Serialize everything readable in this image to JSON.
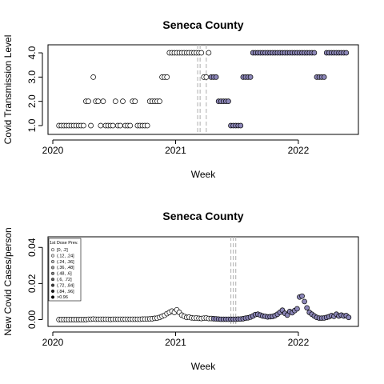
{
  "colors": {
    "fill_low": "#ffffff",
    "fill_high": "#8c87b8",
    "stroke": "#000000",
    "vline": "#bbbbbb"
  },
  "chart_data": [
    {
      "type": "scatter",
      "title": "Seneca County",
      "xlabel": "Week",
      "ylabel": "Covid Transmission Level",
      "x_ticks": [
        "2020",
        "2021",
        "2022"
      ],
      "y_ticks": [
        "1.0",
        "2.0",
        "3.0",
        "4.0"
      ],
      "xlim": [
        2020.0,
        2022.45
      ],
      "ylim": [
        0.9,
        4.1
      ],
      "vlines": [
        2021.18,
        2021.2,
        2021.25
      ],
      "series": [
        {
          "style": "open",
          "points": [
            [
              2020.05,
              1
            ],
            [
              2020.07,
              1
            ],
            [
              2020.09,
              1
            ],
            [
              2020.11,
              1
            ],
            [
              2020.13,
              1
            ],
            [
              2020.15,
              1
            ],
            [
              2020.17,
              1
            ],
            [
              2020.19,
              1
            ],
            [
              2020.21,
              1
            ],
            [
              2020.23,
              1
            ],
            [
              2020.25,
              1
            ],
            [
              2020.27,
              2
            ],
            [
              2020.29,
              2
            ],
            [
              2020.31,
              1
            ],
            [
              2020.33,
              3
            ],
            [
              2020.35,
              2
            ],
            [
              2020.37,
              2
            ],
            [
              2020.39,
              1
            ],
            [
              2020.41,
              2
            ],
            [
              2020.43,
              1
            ],
            [
              2020.45,
              1
            ],
            [
              2020.47,
              1
            ],
            [
              2020.49,
              1
            ],
            [
              2020.51,
              2
            ],
            [
              2020.53,
              1
            ],
            [
              2020.55,
              1
            ],
            [
              2020.57,
              2
            ],
            [
              2020.59,
              1
            ],
            [
              2020.61,
              1
            ],
            [
              2020.63,
              1
            ],
            [
              2020.65,
              2
            ],
            [
              2020.67,
              2
            ],
            [
              2020.69,
              1
            ],
            [
              2020.71,
              1
            ],
            [
              2020.73,
              1
            ],
            [
              2020.75,
              1
            ],
            [
              2020.77,
              1
            ],
            [
              2020.79,
              2
            ],
            [
              2020.81,
              2
            ],
            [
              2020.83,
              2
            ],
            [
              2020.85,
              2
            ],
            [
              2020.87,
              2
            ],
            [
              2020.89,
              3
            ],
            [
              2020.91,
              3
            ],
            [
              2020.93,
              3
            ],
            [
              2020.95,
              4
            ],
            [
              2020.97,
              4
            ],
            [
              2020.99,
              4
            ],
            [
              2021.01,
              4
            ],
            [
              2021.03,
              4
            ],
            [
              2021.05,
              4
            ],
            [
              2021.07,
              4
            ],
            [
              2021.09,
              4
            ],
            [
              2021.11,
              4
            ],
            [
              2021.13,
              4
            ],
            [
              2021.15,
              4
            ],
            [
              2021.17,
              4
            ],
            [
              2021.19,
              4
            ],
            [
              2021.21,
              4
            ],
            [
              2021.23,
              3
            ],
            [
              2021.25,
              3
            ],
            [
              2021.27,
              4
            ]
          ]
        },
        {
          "style": "filled",
          "points": [
            [
              2021.29,
              3
            ],
            [
              2021.31,
              3
            ],
            [
              2021.33,
              3
            ],
            [
              2021.35,
              2
            ],
            [
              2021.37,
              2
            ],
            [
              2021.39,
              2
            ],
            [
              2021.41,
              2
            ],
            [
              2021.43,
              2
            ],
            [
              2021.45,
              1
            ],
            [
              2021.47,
              1
            ],
            [
              2021.49,
              1
            ],
            [
              2021.51,
              1
            ],
            [
              2021.53,
              1
            ],
            [
              2021.55,
              3
            ],
            [
              2021.57,
              3
            ],
            [
              2021.59,
              3
            ],
            [
              2021.61,
              3
            ],
            [
              2021.63,
              4
            ],
            [
              2021.65,
              4
            ],
            [
              2021.67,
              4
            ],
            [
              2021.69,
              4
            ],
            [
              2021.71,
              4
            ],
            [
              2021.73,
              4
            ],
            [
              2021.75,
              4
            ],
            [
              2021.77,
              4
            ],
            [
              2021.79,
              4
            ],
            [
              2021.81,
              4
            ],
            [
              2021.83,
              4
            ],
            [
              2021.85,
              4
            ],
            [
              2021.87,
              4
            ],
            [
              2021.89,
              4
            ],
            [
              2021.91,
              4
            ],
            [
              2021.93,
              4
            ],
            [
              2021.95,
              4
            ],
            [
              2021.97,
              4
            ],
            [
              2021.99,
              4
            ],
            [
              2022.01,
              4
            ],
            [
              2022.03,
              4
            ],
            [
              2022.05,
              4
            ],
            [
              2022.07,
              4
            ],
            [
              2022.09,
              4
            ],
            [
              2022.11,
              4
            ],
            [
              2022.13,
              4
            ],
            [
              2022.15,
              3
            ],
            [
              2022.17,
              3
            ],
            [
              2022.19,
              3
            ],
            [
              2022.21,
              3
            ],
            [
              2022.23,
              4
            ],
            [
              2022.25,
              4
            ],
            [
              2022.27,
              4
            ],
            [
              2022.29,
              4
            ],
            [
              2022.31,
              4
            ],
            [
              2022.33,
              4
            ],
            [
              2022.35,
              4
            ],
            [
              2022.37,
              4
            ],
            [
              2022.39,
              4
            ]
          ]
        }
      ]
    },
    {
      "type": "scatter",
      "title": "Seneca County",
      "xlabel": "Week",
      "ylabel": "New Covid Cases/person",
      "x_ticks": [
        "2020",
        "2021",
        "2022"
      ],
      "y_ticks": [
        "0.00",
        "0.02",
        "0.04"
      ],
      "xlim": [
        2020.0,
        2022.45
      ],
      "ylim": [
        -0.002,
        0.045
      ],
      "vlines": [
        2021.45,
        2021.47,
        2021.49
      ],
      "legend": {
        "title": "1st Dose Prev.",
        "position": "top-left",
        "items": [
          "[0, .2]",
          "(.12, .24]",
          "(.24, .36]",
          "(.36, .48]",
          "(.48, .6]",
          "(.6, .72]",
          "(.72, .84]",
          "(.84, .96]",
          ">0.96"
        ]
      },
      "series": [
        {
          "style": "open",
          "points": [
            [
              2020.05,
              0
            ],
            [
              2020.07,
              0
            ],
            [
              2020.09,
              0
            ],
            [
              2020.11,
              0
            ],
            [
              2020.13,
              0
            ],
            [
              2020.15,
              0
            ],
            [
              2020.17,
              0
            ],
            [
              2020.19,
              0
            ],
            [
              2020.21,
              0
            ],
            [
              2020.23,
              0
            ],
            [
              2020.25,
              0
            ],
            [
              2020.27,
              0
            ],
            [
              2020.29,
              0.0002
            ],
            [
              2020.31,
              0.0002
            ],
            [
              2020.33,
              0.0003
            ],
            [
              2020.35,
              0.0002
            ],
            [
              2020.37,
              0.0002
            ],
            [
              2020.39,
              0.0002
            ],
            [
              2020.41,
              0.0002
            ],
            [
              2020.43,
              0.0002
            ],
            [
              2020.45,
              0.0002
            ],
            [
              2020.47,
              0.0001
            ],
            [
              2020.49,
              0.0002
            ],
            [
              2020.51,
              0.0002
            ],
            [
              2020.53,
              0.0002
            ],
            [
              2020.55,
              0.0002
            ],
            [
              2020.57,
              0.0002
            ],
            [
              2020.59,
              0.0002
            ],
            [
              2020.61,
              0.0002
            ],
            [
              2020.63,
              0.0002
            ],
            [
              2020.65,
              0.0002
            ],
            [
              2020.67,
              0.0002
            ],
            [
              2020.69,
              0.0002
            ],
            [
              2020.71,
              0.0002
            ],
            [
              2020.73,
              0.0003
            ],
            [
              2020.75,
              0.0003
            ],
            [
              2020.77,
              0.0003
            ],
            [
              2020.79,
              0.0004
            ],
            [
              2020.81,
              0.0005
            ],
            [
              2020.83,
              0.0007
            ],
            [
              2020.85,
              0.0008
            ],
            [
              2020.87,
              0.0012
            ],
            [
              2020.89,
              0.0018
            ],
            [
              2020.91,
              0.0024
            ],
            [
              2020.93,
              0.0033
            ],
            [
              2020.95,
              0.004
            ],
            [
              2020.97,
              0.0047
            ],
            [
              2020.99,
              0.004
            ],
            [
              2021.01,
              0.0054
            ],
            [
              2021.03,
              0.004
            ],
            [
              2021.05,
              0.0025
            ],
            [
              2021.07,
              0.0018
            ],
            [
              2021.09,
              0.0012
            ],
            [
              2021.11,
              0.0014
            ],
            [
              2021.13,
              0.001
            ],
            [
              2021.15,
              0.0008
            ],
            [
              2021.17,
              0.0009
            ],
            [
              2021.19,
              0.0007
            ],
            [
              2021.21,
              0.0006
            ],
            [
              2021.23,
              0.0008
            ],
            [
              2021.25,
              0.0009
            ],
            [
              2021.27,
              0.0006
            ],
            [
              2021.29,
              0.0006
            ]
          ]
        },
        {
          "style": "filled",
          "points": [
            [
              2021.31,
              0.0005
            ],
            [
              2021.33,
              0.0004
            ],
            [
              2021.35,
              0.0003
            ],
            [
              2021.37,
              0.0002
            ],
            [
              2021.39,
              0.0002
            ],
            [
              2021.41,
              0.0002
            ],
            [
              2021.43,
              0.0002
            ],
            [
              2021.45,
              0.0002
            ],
            [
              2021.47,
              0.0002
            ],
            [
              2021.49,
              0.0002
            ],
            [
              2021.51,
              0.0003
            ],
            [
              2021.53,
              0.0003
            ],
            [
              2021.55,
              0.0005
            ],
            [
              2021.57,
              0.0008
            ],
            [
              2021.59,
              0.001
            ],
            [
              2021.61,
              0.0014
            ],
            [
              2021.63,
              0.002
            ],
            [
              2021.65,
              0.0028
            ],
            [
              2021.67,
              0.003
            ],
            [
              2021.69,
              0.0025
            ],
            [
              2021.71,
              0.002
            ],
            [
              2021.73,
              0.0018
            ],
            [
              2021.75,
              0.0015
            ],
            [
              2021.77,
              0.0016
            ],
            [
              2021.79,
              0.0017
            ],
            [
              2021.81,
              0.0022
            ],
            [
              2021.83,
              0.003
            ],
            [
              2021.85,
              0.004
            ],
            [
              2021.87,
              0.0052
            ],
            [
              2021.89,
              0.0035
            ],
            [
              2021.91,
              0.0025
            ],
            [
              2021.93,
              0.0045
            ],
            [
              2021.95,
              0.0038
            ],
            [
              2021.97,
              0.005
            ],
            [
              2021.99,
              0.006
            ],
            [
              2022.01,
              0.0125
            ],
            [
              2022.03,
              0.013
            ],
            [
              2022.05,
              0.01
            ],
            [
              2022.07,
              0.0065
            ],
            [
              2022.09,
              0.004
            ],
            [
              2022.11,
              0.003
            ],
            [
              2022.13,
              0.002
            ],
            [
              2022.15,
              0.0012
            ],
            [
              2022.17,
              0.0008
            ],
            [
              2022.19,
              0.0008
            ],
            [
              2022.21,
              0.0009
            ],
            [
              2022.23,
              0.0012
            ],
            [
              2022.25,
              0.0016
            ],
            [
              2022.27,
              0.0022
            ],
            [
              2022.29,
              0.0018
            ],
            [
              2022.31,
              0.003
            ],
            [
              2022.33,
              0.002
            ],
            [
              2022.35,
              0.0025
            ],
            [
              2022.37,
              0.002
            ],
            [
              2022.39,
              0.0022
            ],
            [
              2022.41,
              0.0012
            ]
          ]
        }
      ]
    }
  ]
}
